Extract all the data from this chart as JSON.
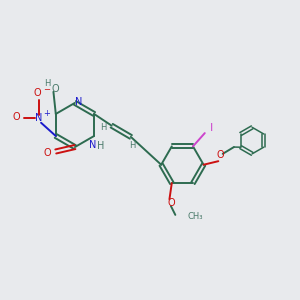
{
  "background_color": "#e8eaed",
  "bond_color": "#2d6b50",
  "n_color": "#1a1acc",
  "o_color": "#cc1111",
  "i_color": "#cc44cc",
  "h_color": "#4a7a6a",
  "figsize": [
    3.0,
    3.0
  ],
  "dpi": 100,
  "xlim": [
    0,
    10
  ],
  "ylim": [
    0,
    10
  ]
}
